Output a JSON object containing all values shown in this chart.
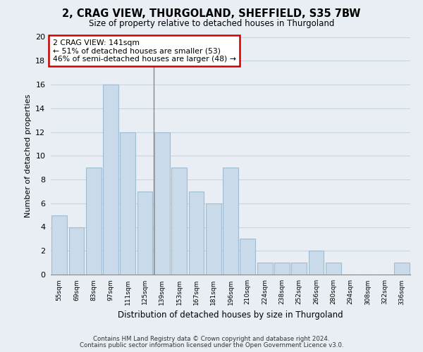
{
  "title1": "2, CRAG VIEW, THURGOLAND, SHEFFIELD, S35 7BW",
  "title2": "Size of property relative to detached houses in Thurgoland",
  "xlabel": "Distribution of detached houses by size in Thurgoland",
  "ylabel": "Number of detached properties",
  "categories": [
    "55sqm",
    "69sqm",
    "83sqm",
    "97sqm",
    "111sqm",
    "125sqm",
    "139sqm",
    "153sqm",
    "167sqm",
    "181sqm",
    "196sqm",
    "210sqm",
    "224sqm",
    "238sqm",
    "252sqm",
    "266sqm",
    "280sqm",
    "294sqm",
    "308sqm",
    "322sqm",
    "336sqm"
  ],
  "values": [
    5,
    4,
    9,
    16,
    12,
    7,
    12,
    9,
    7,
    6,
    9,
    3,
    1,
    1,
    1,
    2,
    1,
    0,
    0,
    0,
    1
  ],
  "bar_color": "#c9daea",
  "bar_edge_color": "#a0bcd0",
  "subject_line_index": 6,
  "subject_label": "2 CRAG VIEW: 141sqm",
  "annotation_line1": "← 51% of detached houses are smaller (53)",
  "annotation_line2": "46% of semi-detached houses are larger (48) →",
  "annotation_box_facecolor": "#ffffff",
  "annotation_box_edgecolor": "#cc0000",
  "ylim": [
    0,
    20
  ],
  "yticks": [
    0,
    2,
    4,
    6,
    8,
    10,
    12,
    14,
    16,
    18,
    20
  ],
  "grid_color": "#c8d4de",
  "fig_bg_color": "#e8eef4",
  "axes_bg_color": "#e8eef4",
  "footnote1": "Contains HM Land Registry data © Crown copyright and database right 2024.",
  "footnote2": "Contains public sector information licensed under the Open Government Licence v3.0."
}
